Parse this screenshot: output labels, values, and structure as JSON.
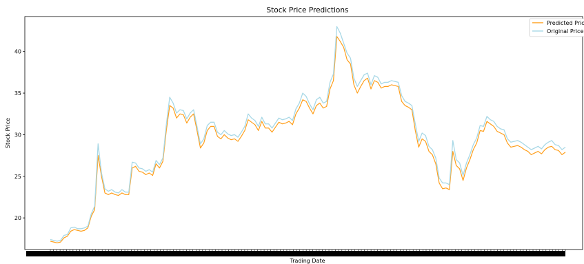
{
  "chart_data": {
    "type": "line",
    "title": "Stock Price Predictions",
    "xlabel": "Trading Date",
    "ylabel": "Stock Price",
    "x_ticks_note": "",
    "ylim": [
      16.2,
      44.2
    ],
    "yticks": [
      20,
      25,
      30,
      35,
      40
    ],
    "grid": false,
    "legend_position": "top-right",
    "colors": {
      "predicted": "#ff9f1c",
      "original": "#a8d8e6"
    },
    "series": [
      {
        "name": "Predicted Price",
        "color": "#ff9f1c",
        "values": [
          17.2,
          17.1,
          17.0,
          17.1,
          17.6,
          17.8,
          18.4,
          18.6,
          18.5,
          18.4,
          18.5,
          18.8,
          20.2,
          21.0,
          27.5,
          25.0,
          23.0,
          22.8,
          23.0,
          22.8,
          22.7,
          23.0,
          22.8,
          22.8,
          26.0,
          26.2,
          25.6,
          25.5,
          25.2,
          25.4,
          25.1,
          26.5,
          26.0,
          26.8,
          30.5,
          33.5,
          33.2,
          32.0,
          32.5,
          32.4,
          31.4,
          32.1,
          32.5,
          30.5,
          28.4,
          29.0,
          30.5,
          31.0,
          31.0,
          29.8,
          29.5,
          30.0,
          29.6,
          29.4,
          29.5,
          29.2,
          29.8,
          30.5,
          31.8,
          31.5,
          31.2,
          30.5,
          31.6,
          30.8,
          30.8,
          30.3,
          30.9,
          31.5,
          31.3,
          31.4,
          31.6,
          31.2,
          32.5,
          33.2,
          34.2,
          34.0,
          33.2,
          32.5,
          33.5,
          33.8,
          33.2,
          33.4,
          35.5,
          36.5,
          41.8,
          41.2,
          40.5,
          39.0,
          38.5,
          36.0,
          35.0,
          35.8,
          36.5,
          36.8,
          35.5,
          36.5,
          36.3,
          35.6,
          35.8,
          35.8,
          36.0,
          35.9,
          35.8,
          34.0,
          33.5,
          33.3,
          33.0,
          30.5,
          28.5,
          29.5,
          29.2,
          28.0,
          27.6,
          26.5,
          24.2,
          23.5,
          23.6,
          23.4,
          28.0,
          26.3,
          25.9,
          24.5,
          26.0,
          27.0,
          28.2,
          29.0,
          30.5,
          30.4,
          31.6,
          31.3,
          31.0,
          30.4,
          30.2,
          30.0,
          29.0,
          28.5,
          28.6,
          28.7,
          28.5,
          28.2,
          28.0,
          27.6,
          27.8,
          28.0,
          27.7,
          28.2,
          28.5,
          28.6,
          28.2,
          28.1,
          27.6,
          27.9
        ]
      },
      {
        "name": "Original Price",
        "color": "#a8d8e6",
        "values": [
          17.4,
          17.3,
          17.2,
          17.3,
          17.9,
          18.0,
          18.8,
          18.9,
          18.7,
          18.7,
          18.8,
          19.0,
          20.5,
          21.4,
          28.9,
          25.4,
          23.5,
          23.2,
          23.4,
          23.1,
          23.0,
          23.4,
          23.1,
          23.1,
          26.7,
          26.6,
          26.0,
          25.9,
          25.6,
          25.8,
          25.5,
          26.9,
          26.4,
          27.2,
          31.2,
          34.5,
          33.8,
          32.6,
          33.0,
          32.9,
          31.9,
          32.6,
          33.0,
          31.0,
          28.9,
          29.5,
          31.1,
          31.5,
          31.5,
          30.3,
          30.0,
          30.5,
          30.1,
          29.9,
          30.0,
          29.7,
          30.3,
          31.0,
          32.5,
          32.0,
          31.7,
          31.0,
          32.1,
          31.3,
          31.3,
          30.8,
          31.4,
          32.0,
          31.8,
          31.9,
          32.1,
          31.7,
          33.1,
          33.8,
          35.0,
          34.6,
          33.7,
          33.0,
          34.2,
          34.5,
          33.8,
          34.0,
          36.3,
          37.3,
          43.0,
          42.2,
          41.0,
          39.8,
          39.2,
          36.8,
          35.8,
          36.5,
          37.2,
          37.4,
          36.0,
          37.1,
          36.9,
          36.1,
          36.3,
          36.3,
          36.5,
          36.4,
          36.3,
          34.7,
          34.0,
          33.8,
          33.5,
          31.3,
          29.2,
          30.2,
          29.9,
          28.6,
          28.2,
          27.2,
          24.8,
          24.2,
          24.2,
          24.0,
          29.3,
          27.0,
          26.6,
          25.1,
          26.6,
          27.6,
          28.8,
          29.6,
          31.1,
          31.0,
          32.2,
          31.8,
          31.6,
          31.0,
          30.7,
          30.6,
          29.5,
          29.1,
          29.2,
          29.3,
          29.1,
          28.8,
          28.5,
          28.2,
          28.4,
          28.6,
          28.3,
          28.8,
          29.1,
          29.3,
          28.8,
          28.7,
          28.2,
          28.5
        ]
      }
    ]
  }
}
